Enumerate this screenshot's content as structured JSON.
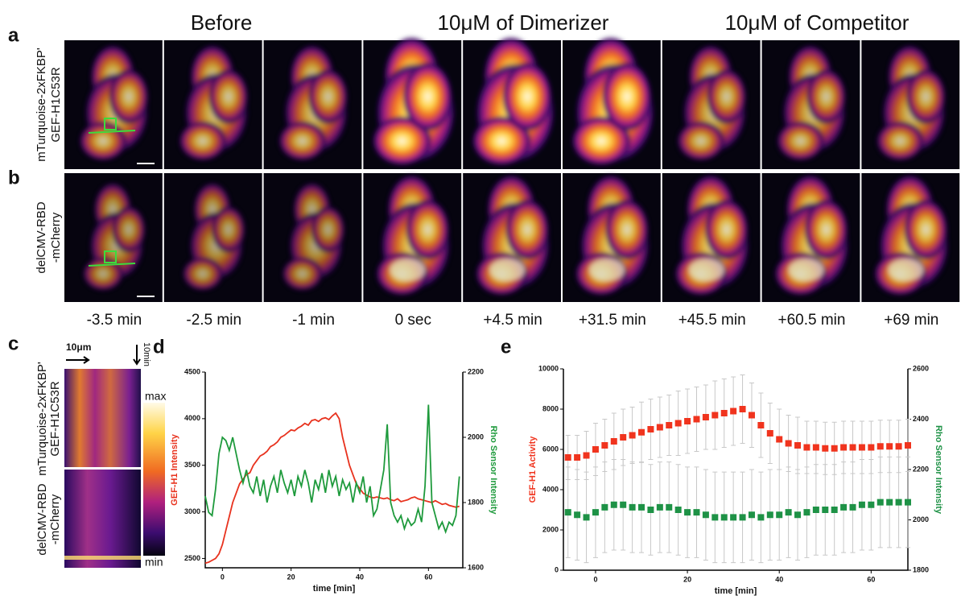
{
  "panels": {
    "labels": [
      "a",
      "b",
      "c",
      "d",
      "e"
    ],
    "headers": [
      "Before",
      "10μM of Dimerizer",
      "10μM of Competitor"
    ],
    "row_a": [
      "mTurquoise-2xFKBP'",
      "GEF-H1C53R"
    ],
    "row_b": [
      "delCMV-RBD",
      "-mCherry"
    ],
    "times": [
      "-3.5 min",
      "-2.5 min",
      "-1 min",
      "0 sec",
      "+4.5 min",
      "+31.5 min",
      "+45.5 min",
      "+60.5 min",
      "+69 min"
    ],
    "kymo_space": "10μm",
    "kymo_time": "10min",
    "colorbar": [
      "max",
      "min"
    ]
  },
  "chart_data": [
    {
      "type": "line",
      "xlabel": "time [min]",
      "ylabel": "GEF-H1 Intensity",
      "y2label": "Rho Sensor Intensity",
      "xlim": [
        -5,
        70
      ],
      "xticks": [
        0,
        20,
        40,
        60
      ],
      "ylim": [
        2400,
        4500
      ],
      "yticks": [
        2500,
        3000,
        3500,
        4000,
        4500
      ],
      "y2lim": [
        1600,
        2200
      ],
      "y2ticks": [
        1600,
        1800,
        2000,
        2200
      ],
      "x": [
        -5,
        -4,
        -3,
        -2,
        -1,
        0,
        1,
        2,
        3,
        4,
        5,
        6,
        7,
        8,
        9,
        10,
        11,
        12,
        13,
        14,
        15,
        16,
        17,
        18,
        19,
        20,
        21,
        22,
        23,
        24,
        25,
        26,
        27,
        28,
        29,
        30,
        31,
        32,
        33,
        34,
        35,
        36,
        37,
        38,
        39,
        40,
        41,
        42,
        43,
        44,
        45,
        46,
        47,
        48,
        49,
        50,
        51,
        52,
        53,
        54,
        55,
        56,
        57,
        58,
        59,
        60,
        61,
        62,
        63,
        64,
        65,
        66,
        67,
        68,
        69
      ],
      "series": [
        {
          "name": "GEF-H1 Intensity",
          "color": "#e8321e",
          "values": [
            2450,
            2460,
            2480,
            2500,
            2550,
            2650,
            2800,
            2950,
            3100,
            3200,
            3300,
            3350,
            3400,
            3420,
            3500,
            3550,
            3600,
            3620,
            3650,
            3700,
            3720,
            3750,
            3800,
            3820,
            3850,
            3880,
            3870,
            3900,
            3920,
            3950,
            3930,
            3980,
            3990,
            3970,
            4000,
            4010,
            3990,
            4030,
            4060,
            4000,
            3800,
            3650,
            3500,
            3400,
            3300,
            3250,
            3200,
            3180,
            3160,
            3150,
            3160,
            3150,
            3140,
            3150,
            3130,
            3120,
            3140,
            3110,
            3120,
            3130,
            3150,
            3160,
            3140,
            3130,
            3120,
            3110,
            3100,
            3120,
            3100,
            3080,
            3090,
            3070,
            3060,
            3050,
            3060
          ]
        },
        {
          "name": "Rho Sensor Intensity",
          "color": "#1e9a3c",
          "axis": "y2",
          "values": [
            1820,
            1770,
            1760,
            1840,
            1950,
            2000,
            1990,
            1960,
            2000,
            1950,
            1900,
            1860,
            1900,
            1850,
            1830,
            1880,
            1820,
            1870,
            1800,
            1850,
            1880,
            1830,
            1900,
            1860,
            1830,
            1870,
            1820,
            1880,
            1850,
            1900,
            1860,
            1800,
            1870,
            1840,
            1890,
            1830,
            1900,
            1850,
            1880,
            1820,
            1870,
            1840,
            1860,
            1800,
            1860,
            1830,
            1880,
            1800,
            1850,
            1760,
            1780,
            1840,
            1900,
            2040,
            1800,
            1760,
            1740,
            1760,
            1720,
            1750,
            1730,
            1740,
            1780,
            1740,
            1850,
            2100,
            1800,
            1760,
            1720,
            1740,
            1710,
            1740,
            1730,
            1760,
            1880
          ]
        }
      ]
    },
    {
      "type": "errorbar",
      "xlabel": "time [min]",
      "ylabel": "GEF-H1 Activity",
      "y2label": "Rho Sensor Intensity",
      "xlim": [
        -7,
        68
      ],
      "xticks": [
        0,
        20,
        40,
        60
      ],
      "ylim": [
        0,
        10000
      ],
      "yticks": [
        0,
        2000,
        4000,
        6000,
        8000,
        10000
      ],
      "y2lim": [
        1800,
        2600
      ],
      "y2ticks": [
        1800,
        2000,
        2200,
        2400,
        2600
      ],
      "errorcolor": "#c8c8c8",
      "x": [
        -6,
        -4,
        -2,
        0,
        2,
        4,
        6,
        8,
        10,
        12,
        14,
        16,
        18,
        20,
        22,
        24,
        26,
        28,
        30,
        32,
        34,
        36,
        38,
        40,
        42,
        44,
        46,
        48,
        50,
        52,
        54,
        56,
        58,
        60,
        62,
        64,
        66,
        68
      ],
      "series": [
        {
          "name": "GEF-H1 Activity",
          "color": "#f0341e",
          "values": [
            5600,
            5600,
            5700,
            6000,
            6200,
            6400,
            6600,
            6700,
            6850,
            7000,
            7100,
            7200,
            7300,
            7400,
            7500,
            7600,
            7700,
            7800,
            7900,
            8000,
            7700,
            7200,
            6800,
            6500,
            6300,
            6200,
            6100,
            6100,
            6050,
            6050,
            6100,
            6100,
            6100,
            6100,
            6150,
            6150,
            6150,
            6200
          ],
          "errors": [
            1100,
            1100,
            1200,
            1300,
            1300,
            1400,
            1400,
            1400,
            1500,
            1500,
            1500,
            1500,
            1600,
            1600,
            1600,
            1600,
            1700,
            1700,
            1700,
            1700,
            1600,
            1600,
            1500,
            1500,
            1400,
            1400,
            1300,
            1300,
            1300,
            1300,
            1300,
            1300,
            1300,
            1300,
            1300,
            1300,
            1300,
            1300
          ]
        },
        {
          "name": "Rho Sensor Intensity",
          "color": "#1e9246",
          "axis": "y2",
          "values": [
            2030,
            2020,
            2010,
            2030,
            2050,
            2060,
            2060,
            2050,
            2050,
            2040,
            2050,
            2050,
            2040,
            2030,
            2030,
            2020,
            2010,
            2010,
            2010,
            2010,
            2020,
            2010,
            2020,
            2020,
            2030,
            2020,
            2030,
            2040,
            2040,
            2040,
            2050,
            2050,
            2060,
            2060,
            2070,
            2070,
            2070,
            2070
          ],
          "errors": [
            180,
            180,
            180,
            180,
            180,
            180,
            180,
            180,
            180,
            180,
            180,
            180,
            180,
            180,
            180,
            180,
            180,
            180,
            180,
            180,
            180,
            180,
            180,
            180,
            180,
            180,
            180,
            180,
            180,
            180,
            180,
            180,
            180,
            180,
            180,
            180,
            180,
            180
          ]
        }
      ]
    }
  ]
}
